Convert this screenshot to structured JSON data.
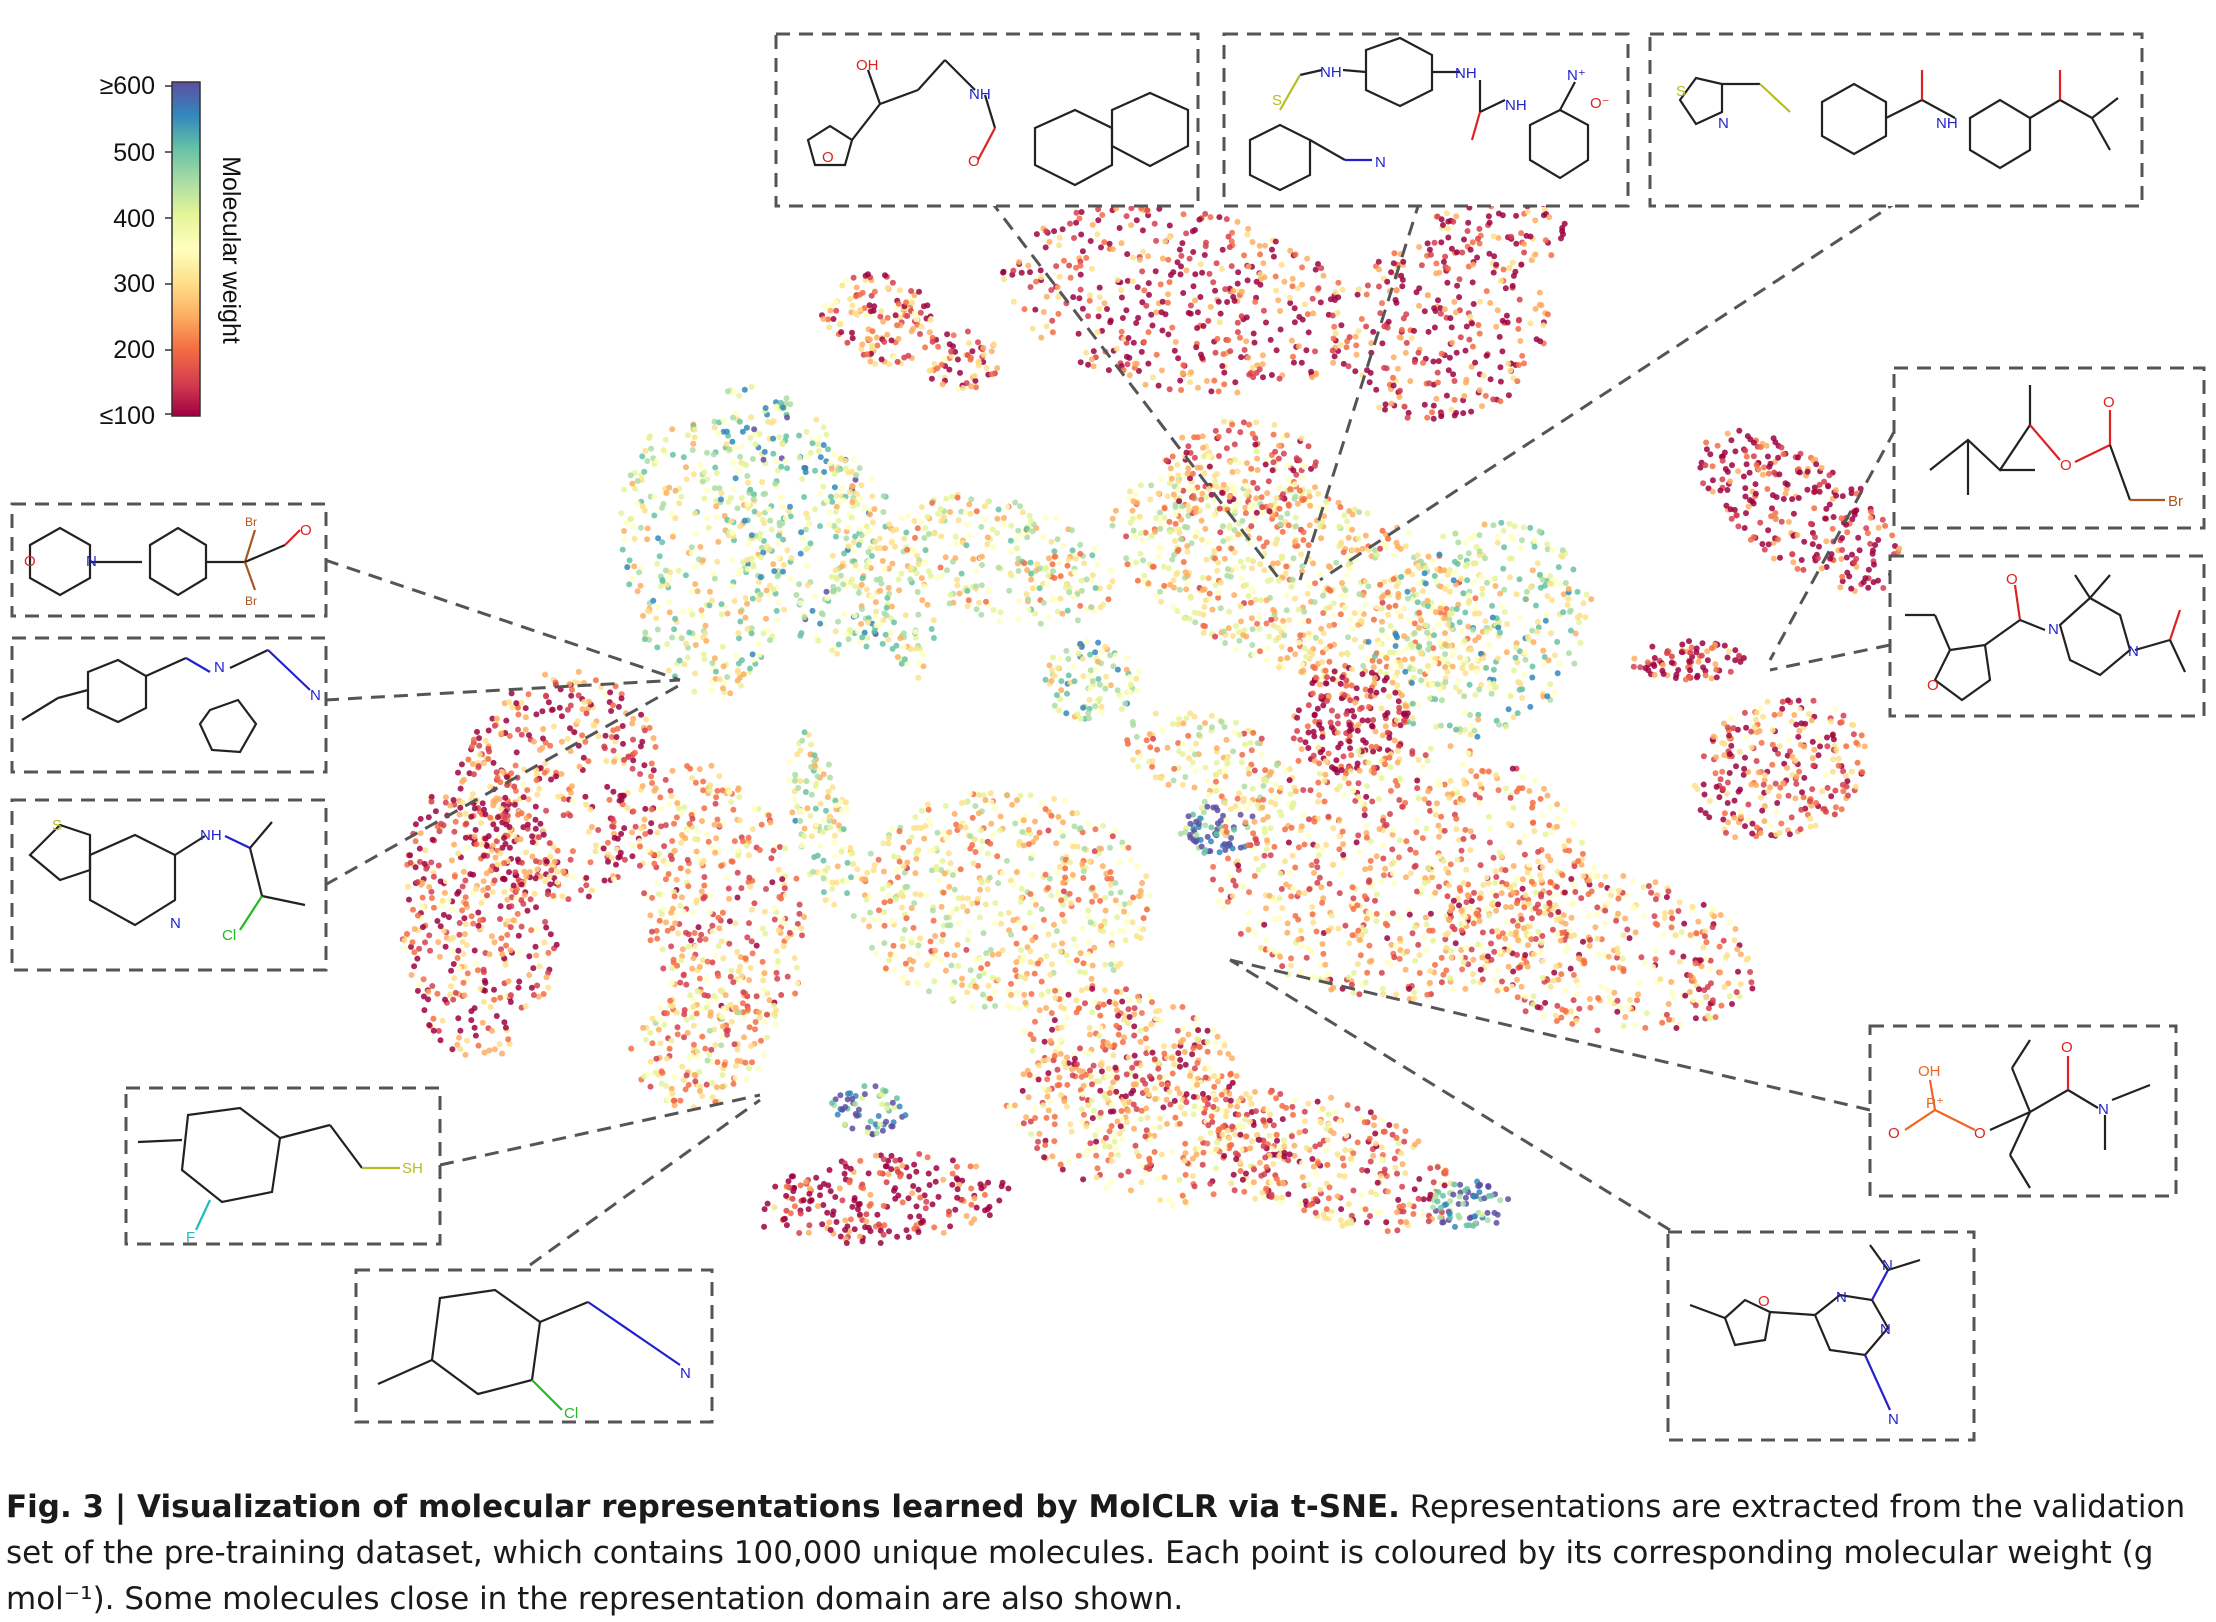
{
  "colorbar": {
    "title": "Molecular weight",
    "ticks": [
      "≥600",
      "500",
      "400",
      "300",
      "200",
      "≤100"
    ],
    "tick_values": [
      600,
      500,
      400,
      300,
      200,
      100
    ],
    "palette": [
      "#9e0142",
      "#d53e4f",
      "#f46d43",
      "#fdae61",
      "#fee08b",
      "#ffffbf",
      "#e6f598",
      "#abdda4",
      "#66c2a5",
      "#3288bd",
      "#5e4fa2"
    ]
  },
  "molecule_labels": {
    "oh": "OH",
    "nh": "NH",
    "n": "N",
    "o": "O",
    "s": "S",
    "br": "Br",
    "cl": "Cl",
    "f": "F",
    "sh": "SH",
    "nplus": "N⁺",
    "ominus": "O⁻",
    "pplus": "P⁺"
  },
  "caption": {
    "bold": "Fig. 3 | Visualization of molecular representations learned by MolCLR via t-SNE.",
    "text": " Representations are extracted from the validation set of the pre-training dataset, which contains 100,000 unique molecules. Each point is coloured by its corresponding molecular weight (g mol⁻¹). Some molecules close in the representation domain are also shown."
  }
}
